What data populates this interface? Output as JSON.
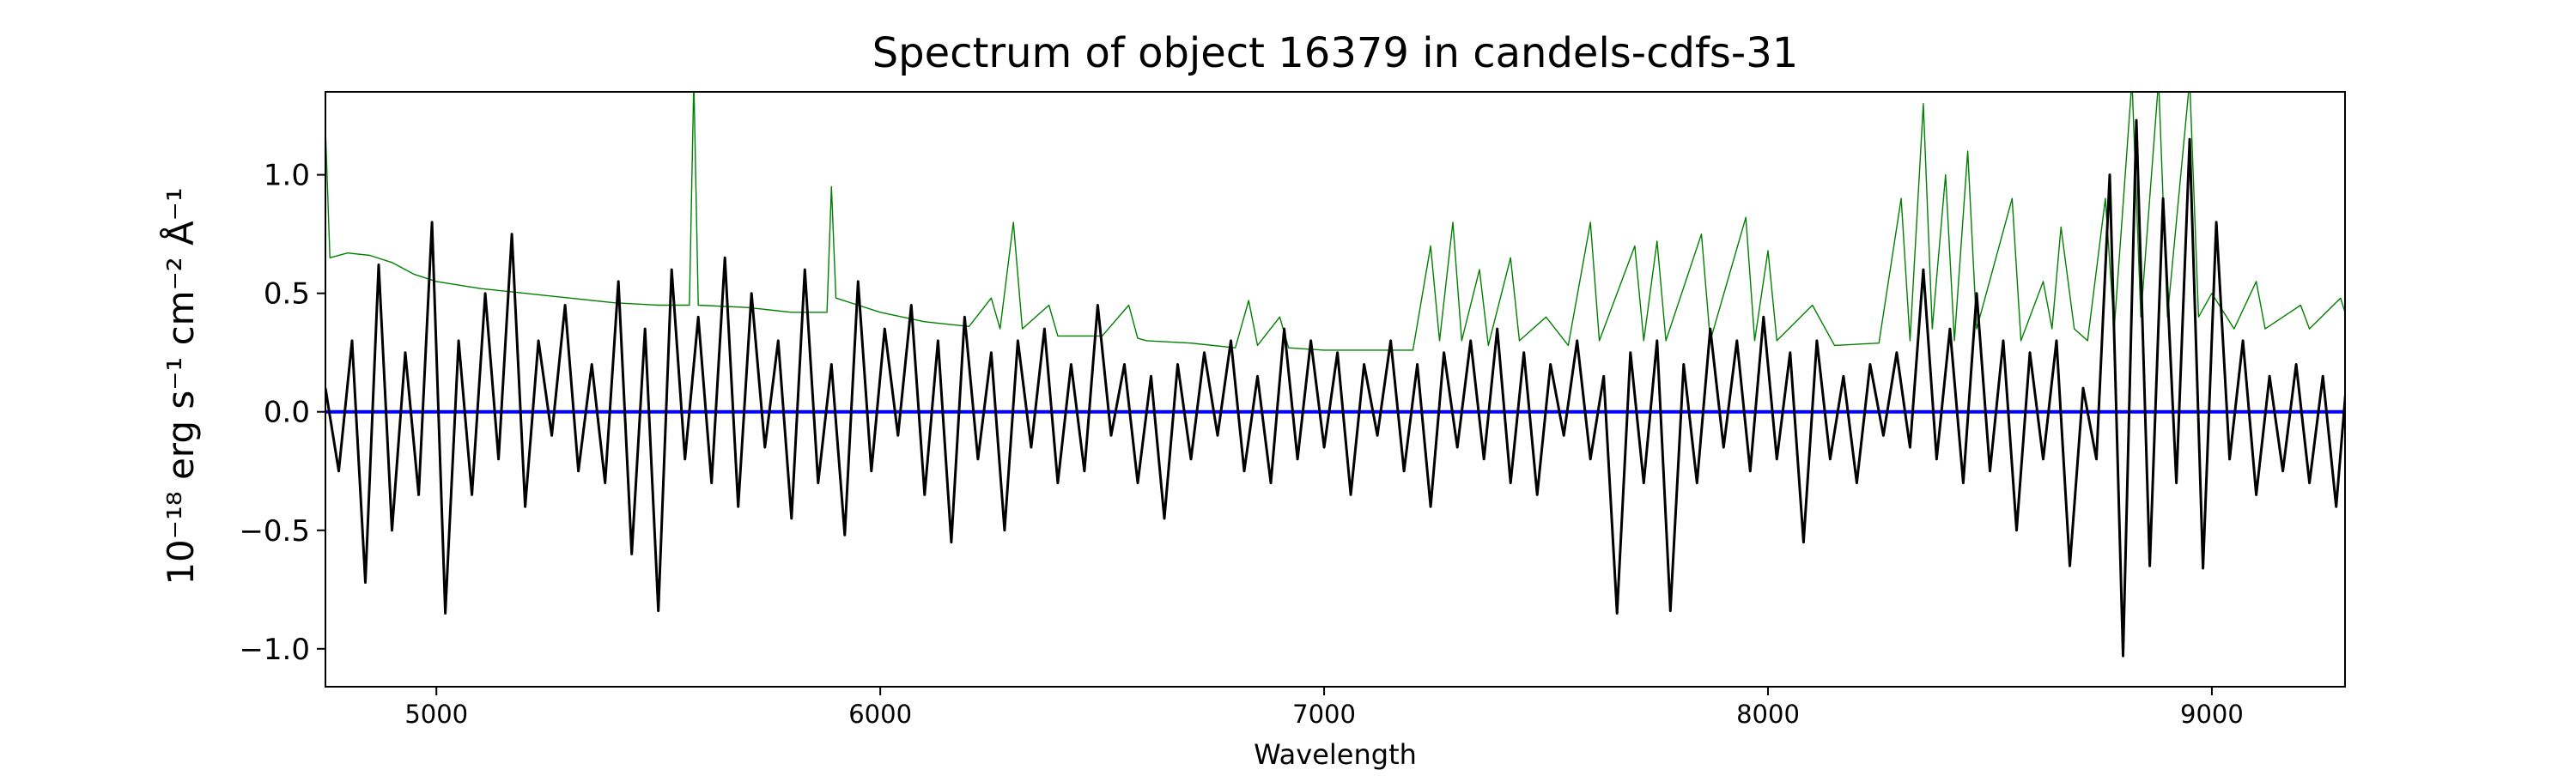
{
  "chart_data": {
    "type": "line",
    "title": "Spectrum of object 16379 in candels-cdfs-31",
    "xlabel": "Wavelength",
    "ylabel": "10⁻¹⁸ erg s⁻¹ cm⁻² Å⁻¹",
    "xlim": [
      4750,
      9300
    ],
    "ylim": [
      -1.16,
      1.35
    ],
    "xticks": [
      5000,
      6000,
      7000,
      8000,
      9000
    ],
    "yticks": [
      -1.0,
      -0.5,
      0.0,
      0.5,
      1.0
    ],
    "ytick_labels": [
      "−1.0",
      "−0.5",
      "0.0",
      "0.5",
      "1.0"
    ],
    "grid": false,
    "series": [
      {
        "color": "#008000",
        "points": [
          [
            4750,
            1.2
          ],
          [
            4760,
            0.65
          ],
          [
            4800,
            0.67
          ],
          [
            4850,
            0.66
          ],
          [
            4900,
            0.63
          ],
          [
            4950,
            0.58
          ],
          [
            5000,
            0.55
          ],
          [
            5100,
            0.52
          ],
          [
            5200,
            0.5
          ],
          [
            5300,
            0.48
          ],
          [
            5400,
            0.46
          ],
          [
            5500,
            0.45
          ],
          [
            5570,
            0.45
          ],
          [
            5580,
            1.4
          ],
          [
            5590,
            0.45
          ],
          [
            5700,
            0.44
          ],
          [
            5800,
            0.42
          ],
          [
            5880,
            0.42
          ],
          [
            5890,
            0.95
          ],
          [
            5900,
            0.48
          ],
          [
            5950,
            0.45
          ],
          [
            6000,
            0.42
          ],
          [
            6100,
            0.38
          ],
          [
            6200,
            0.36
          ],
          [
            6250,
            0.48
          ],
          [
            6270,
            0.35
          ],
          [
            6300,
            0.8
          ],
          [
            6320,
            0.35
          ],
          [
            6380,
            0.45
          ],
          [
            6400,
            0.32
          ],
          [
            6500,
            0.32
          ],
          [
            6560,
            0.45
          ],
          [
            6580,
            0.31
          ],
          [
            6600,
            0.3
          ],
          [
            6700,
            0.29
          ],
          [
            6800,
            0.27
          ],
          [
            6830,
            0.47
          ],
          [
            6850,
            0.28
          ],
          [
            6900,
            0.4
          ],
          [
            6920,
            0.27
          ],
          [
            7000,
            0.26
          ],
          [
            7100,
            0.26
          ],
          [
            7200,
            0.26
          ],
          [
            7240,
            0.7
          ],
          [
            7260,
            0.3
          ],
          [
            7290,
            0.8
          ],
          [
            7310,
            0.3
          ],
          [
            7350,
            0.6
          ],
          [
            7370,
            0.28
          ],
          [
            7420,
            0.65
          ],
          [
            7440,
            0.3
          ],
          [
            7500,
            0.4
          ],
          [
            7550,
            0.28
          ],
          [
            7600,
            0.8
          ],
          [
            7620,
            0.3
          ],
          [
            7700,
            0.7
          ],
          [
            7720,
            0.3
          ],
          [
            7750,
            0.72
          ],
          [
            7770,
            0.3
          ],
          [
            7850,
            0.75
          ],
          [
            7870,
            0.3
          ],
          [
            7950,
            0.82
          ],
          [
            7970,
            0.3
          ],
          [
            8000,
            0.68
          ],
          [
            8020,
            0.3
          ],
          [
            8100,
            0.45
          ],
          [
            8150,
            0.28
          ],
          [
            8250,
            0.29
          ],
          [
            8300,
            0.9
          ],
          [
            8320,
            0.3
          ],
          [
            8350,
            1.3
          ],
          [
            8370,
            0.35
          ],
          [
            8400,
            1.0
          ],
          [
            8420,
            0.3
          ],
          [
            8450,
            1.1
          ],
          [
            8470,
            0.35
          ],
          [
            8550,
            0.9
          ],
          [
            8570,
            0.3
          ],
          [
            8620,
            0.55
          ],
          [
            8640,
            0.35
          ],
          [
            8660,
            0.78
          ],
          [
            8690,
            0.35
          ],
          [
            8720,
            0.3
          ],
          [
            8760,
            0.9
          ],
          [
            8780,
            0.35
          ],
          [
            8820,
            1.4
          ],
          [
            8840,
            0.4
          ],
          [
            8880,
            1.4
          ],
          [
            8900,
            0.4
          ],
          [
            8950,
            1.4
          ],
          [
            8970,
            0.4
          ],
          [
            9000,
            0.5
          ],
          [
            9050,
            0.35
          ],
          [
            9100,
            0.55
          ],
          [
            9120,
            0.35
          ],
          [
            9200,
            0.45
          ],
          [
            9220,
            0.35
          ],
          [
            9290,
            0.48
          ],
          [
            9300,
            0.42
          ]
        ]
      },
      {
        "color": "#0000ff",
        "points": [
          [
            4750,
            0
          ],
          [
            9300,
            0
          ]
        ]
      },
      {
        "color": "#000000",
        "x_start": 4750,
        "x_step": 30,
        "values": [
          0.1,
          -0.25,
          0.3,
          -0.72,
          0.62,
          -0.5,
          0.25,
          -0.35,
          0.8,
          -0.85,
          0.3,
          -0.35,
          0.5,
          -0.2,
          0.75,
          -0.4,
          0.3,
          -0.1,
          0.45,
          -0.25,
          0.2,
          -0.3,
          0.55,
          -0.6,
          0.35,
          -0.84,
          0.6,
          -0.2,
          0.4,
          -0.3,
          0.65,
          -0.4,
          0.5,
          -0.15,
          0.3,
          -0.45,
          0.6,
          -0.3,
          0.2,
          -0.52,
          0.55,
          -0.25,
          0.35,
          -0.1,
          0.45,
          -0.35,
          0.3,
          -0.55,
          0.4,
          -0.2,
          0.25,
          -0.5,
          0.3,
          -0.15,
          0.35,
          -0.3,
          0.2,
          -0.25,
          0.45,
          -0.1,
          0.2,
          -0.3,
          0.15,
          -0.45,
          0.2,
          -0.2,
          0.25,
          -0.1,
          0.3,
          -0.25,
          0.15,
          -0.3,
          0.35,
          -0.2,
          0.3,
          -0.15,
          0.25,
          -0.35,
          0.2,
          -0.1,
          0.3,
          -0.25,
          0.2,
          -0.4,
          0.25,
          -0.15,
          0.3,
          -0.2,
          0.35,
          -0.3,
          0.25,
          -0.35,
          0.2,
          -0.1,
          0.3,
          -0.2,
          0.15,
          -0.85,
          0.25,
          -0.3,
          0.3,
          -0.84,
          0.2,
          -0.3,
          0.35,
          -0.15,
          0.3,
          -0.25,
          0.4,
          -0.2,
          0.25,
          -0.55,
          0.3,
          -0.2,
          0.15,
          -0.3,
          0.2,
          -0.1,
          0.25,
          -0.15,
          0.6,
          -0.2,
          0.35,
          -0.3,
          0.5,
          -0.25,
          0.3,
          -0.5,
          0.25,
          -0.2,
          0.3,
          -0.65,
          0.1,
          -0.2,
          1.0,
          -1.03,
          1.23,
          -0.65,
          0.9,
          -0.3,
          1.15,
          -0.66,
          0.8,
          -0.2,
          0.3,
          -0.35,
          0.15,
          -0.25,
          0.2,
          -0.3,
          0.15,
          -0.4,
          0.28
        ]
      }
    ]
  }
}
